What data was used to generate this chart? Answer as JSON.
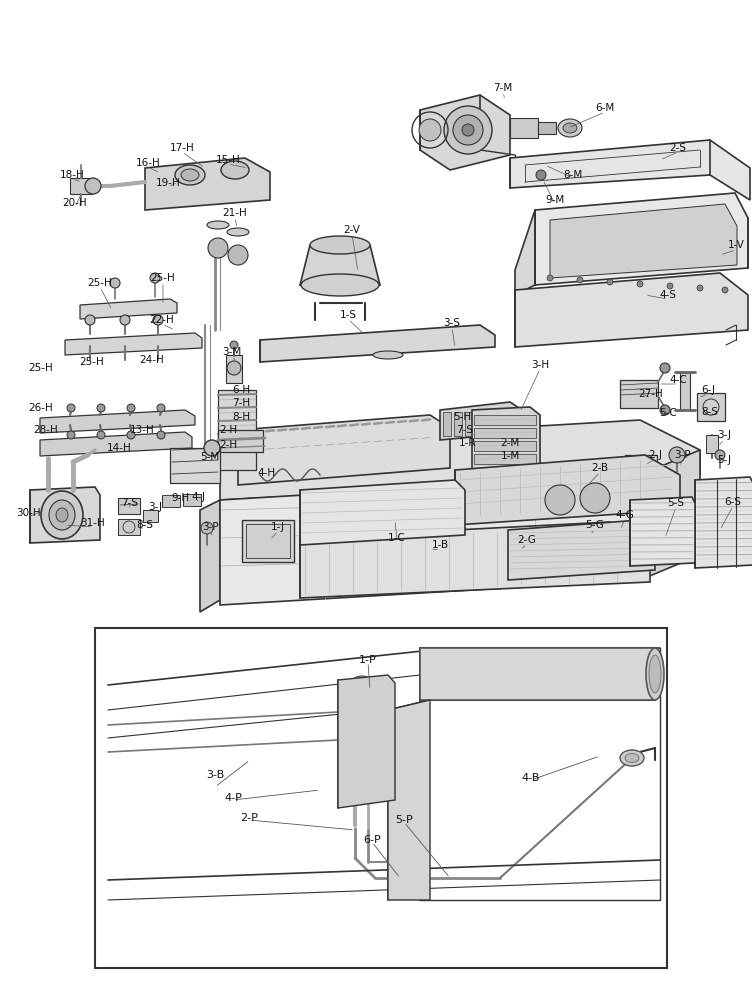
{
  "bg_color": "#ffffff",
  "line_color": "#333333",
  "fig_width": 7.52,
  "fig_height": 10.0,
  "dpi": 100,
  "main_labels": [
    [
      "7-M",
      503,
      88
    ],
    [
      "6-M",
      605,
      108
    ],
    [
      "8-M",
      573,
      175
    ],
    [
      "9-M",
      555,
      200
    ],
    [
      "2-S",
      678,
      148
    ],
    [
      "1-V",
      736,
      245
    ],
    [
      "4-S",
      668,
      295
    ],
    [
      "17-H",
      182,
      148
    ],
    [
      "16-H",
      148,
      163
    ],
    [
      "15-H",
      228,
      160
    ],
    [
      "18-H",
      72,
      175
    ],
    [
      "19-H",
      168,
      183
    ],
    [
      "20-H",
      75,
      203
    ],
    [
      "21-H",
      235,
      213
    ],
    [
      "2-V",
      352,
      230
    ],
    [
      "1-S",
      348,
      315
    ],
    [
      "3-S",
      452,
      323
    ],
    [
      "25-H",
      100,
      283
    ],
    [
      "25-H",
      163,
      278
    ],
    [
      "22-H",
      162,
      320
    ],
    [
      "3-M",
      232,
      352
    ],
    [
      "3-H",
      540,
      365
    ],
    [
      "6-H",
      241,
      390
    ],
    [
      "7-H",
      241,
      403
    ],
    [
      "8-H",
      241,
      417
    ],
    [
      "2-H",
      228,
      430
    ],
    [
      "2-H",
      228,
      445
    ],
    [
      "5-M",
      210,
      457
    ],
    [
      "4-H",
      267,
      473
    ],
    [
      "25-H",
      41,
      368
    ],
    [
      "25-H",
      92,
      362
    ],
    [
      "24-H",
      152,
      360
    ],
    [
      "26-H",
      41,
      408
    ],
    [
      "28-H",
      46,
      430
    ],
    [
      "13-H",
      142,
      430
    ],
    [
      "14-H",
      119,
      448
    ],
    [
      "5-H",
      462,
      417
    ],
    [
      "7-S",
      465,
      430
    ],
    [
      "1-R",
      468,
      443
    ],
    [
      "2-M",
      510,
      443
    ],
    [
      "1-M",
      510,
      456
    ],
    [
      "4-C",
      678,
      380
    ],
    [
      "27-H",
      651,
      394
    ],
    [
      "5-C",
      668,
      413
    ],
    [
      "6-J",
      708,
      390
    ],
    [
      "8-S",
      710,
      412
    ],
    [
      "3-J",
      724,
      435
    ],
    [
      "2-J",
      655,
      455
    ],
    [
      "3-P",
      682,
      455
    ],
    [
      "5-J",
      724,
      460
    ],
    [
      "2-B",
      600,
      468
    ],
    [
      "6-S",
      733,
      502
    ],
    [
      "5-S",
      676,
      503
    ],
    [
      "4-G",
      625,
      515
    ],
    [
      "5-G",
      595,
      525
    ],
    [
      "2-G",
      527,
      540
    ],
    [
      "1-B",
      440,
      545
    ],
    [
      "1-C",
      397,
      538
    ],
    [
      "7-S",
      130,
      503
    ],
    [
      "9-H",
      180,
      498
    ],
    [
      "4-J",
      198,
      497
    ],
    [
      "3-J",
      155,
      507
    ],
    [
      "1-J",
      278,
      527
    ],
    [
      "8-S",
      145,
      525
    ],
    [
      "3-P",
      210,
      527
    ],
    [
      "30-H",
      28,
      513
    ],
    [
      "31-H",
      93,
      523
    ]
  ],
  "inset_labels": [
    [
      "1-P",
      368,
      660
    ],
    [
      "3-B",
      215,
      775
    ],
    [
      "4-P",
      233,
      798
    ],
    [
      "2-P",
      249,
      818
    ],
    [
      "5-P",
      404,
      820
    ],
    [
      "6-P",
      372,
      840
    ],
    [
      "4-B",
      531,
      778
    ]
  ]
}
